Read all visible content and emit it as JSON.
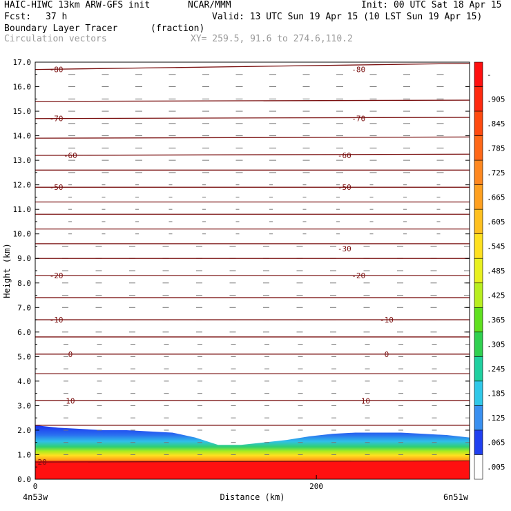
{
  "header": {
    "title_left": "HAIC-HIWC 13km ARW-GFS init",
    "center": "NCAR/MMM",
    "init": "Init: 00 UTC Sat 18 Apr 15",
    "fcst_label": "Fcst:",
    "fcst_value": "37 h",
    "valid": "Valid: 13 UTC Sun 19 Apr 15 (10 LST Sun 19 Apr 15)",
    "field_name": "Boundary Layer Tracer",
    "field_units": "(fraction)",
    "overlay_name": "Circulation vectors",
    "xy": "XY= 259.5, 91.6 to 274.6,110.2"
  },
  "chart_data": {
    "type": "heatmap",
    "title": "Boundary Layer Tracer",
    "ylabel": "Height (km)",
    "xlabel": "Distance (km)",
    "ylim": [
      0,
      17
    ],
    "y_ticks": [
      "0.0",
      "1.0",
      "2.0",
      "3.0",
      "4.0",
      "5.0",
      "6.0",
      "7.0",
      "8.0",
      "9.0",
      "10.0",
      "11.0",
      "12.0",
      "13.0",
      "14.0",
      "15.0",
      "16.0",
      "17.0"
    ],
    "x_ticks": [
      {
        "value": 0,
        "label": "0"
      },
      {
        "value": 200,
        "label": "200"
      }
    ],
    "xlim": [
      0,
      309
    ],
    "endpoint_labels": {
      "left": "4n53w",
      "right": "6n51w"
    },
    "colorbar_labels": [
      "-",
      ".905",
      ".845",
      ".785",
      ".725",
      ".665",
      ".605",
      ".545",
      ".485",
      ".425",
      ".365",
      ".305",
      ".245",
      ".185",
      ".125",
      ".065",
      ".005"
    ],
    "colorbar_colors": [
      "#ff1010",
      "#ff2a10",
      "#ff4a10",
      "#ff6818",
      "#ff8820",
      "#ffa020",
      "#ffc020",
      "#ffe020",
      "#e8f020",
      "#b8ee20",
      "#60e020",
      "#30d050",
      "#20d0a0",
      "#30c8e8",
      "#3a90f0",
      "#2040f0",
      "#ffffff"
    ],
    "isotherm_labels": [
      {
        "t": "-80",
        "y": 16.7,
        "x": [
          15,
          230
        ]
      },
      {
        "t": "-70",
        "y": 14.7,
        "x": [
          15,
          230
        ]
      },
      {
        "t": "-60",
        "y": 13.2,
        "x": [
          25,
          220
        ]
      },
      {
        "t": "-50",
        "y": 11.9,
        "x": [
          15,
          220
        ]
      },
      {
        "t": "-30",
        "y": 9.4,
        "x": [
          220
        ]
      },
      {
        "t": "-20",
        "y": 8.3,
        "x": [
          15,
          230
        ]
      },
      {
        "t": "-10",
        "y": 6.5,
        "x": [
          15,
          250
        ]
      },
      {
        "t": "0",
        "y": 5.1,
        "x": [
          25,
          250
        ]
      },
      {
        "t": "10",
        "y": 3.2,
        "x": [
          25,
          235
        ]
      },
      {
        "t": "20",
        "y": 0.7,
        "x": [
          5
        ]
      }
    ]
  }
}
